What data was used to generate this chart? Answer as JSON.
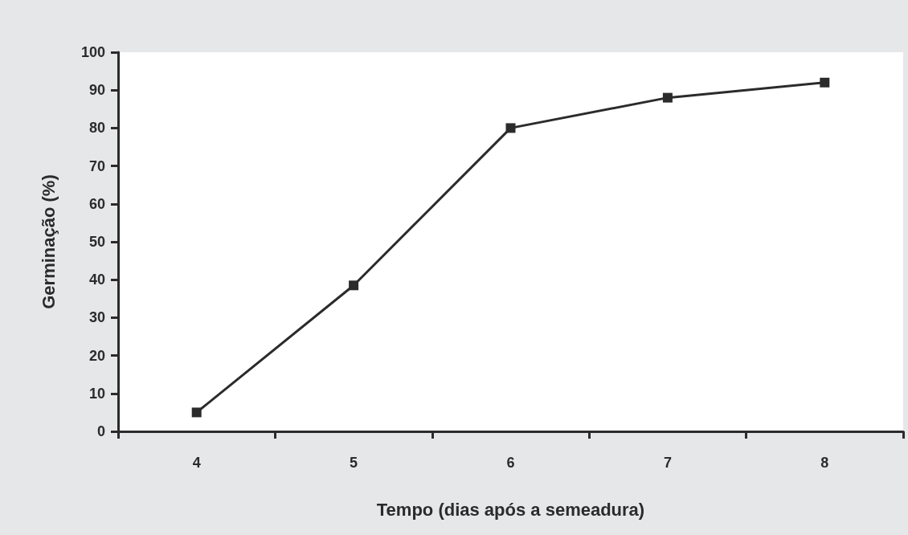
{
  "chart_data": {
    "type": "line",
    "xlabel": "Tempo (dias após a semeadura)",
    "ylabel": "Germinação (%)",
    "categories": [
      "4",
      "5",
      "6",
      "7",
      "8"
    ],
    "series": [
      {
        "color": "#2b2b2b",
        "values": [
          5,
          38.5,
          80,
          88,
          92
        ]
      }
    ],
    "ylim": [
      0,
      100
    ],
    "yticks": [
      0,
      10,
      20,
      30,
      40,
      50,
      60,
      70,
      80,
      90,
      100
    ],
    "grid": false,
    "marker": "square",
    "line_style": "solid"
  }
}
